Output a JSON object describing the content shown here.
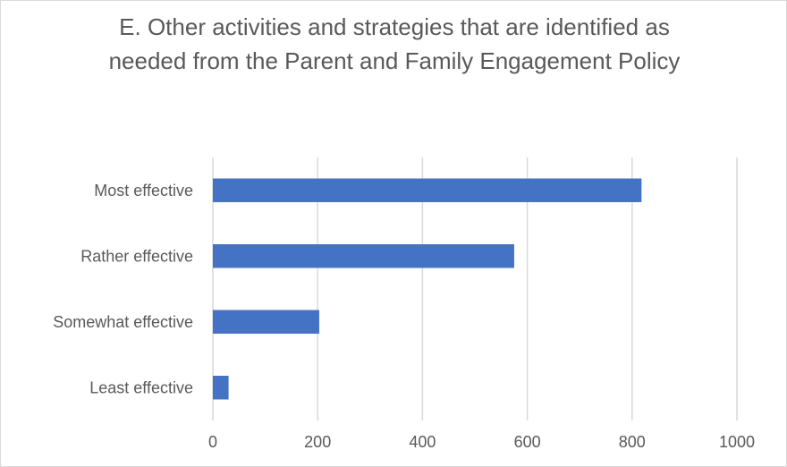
{
  "chart_data": {
    "type": "bar",
    "orientation": "horizontal",
    "title": "E. Other activities and strategies that are identified as needed from the Parent and Family Engagement Policy",
    "categories": [
      "Most effective",
      "Rather effective",
      "Somewhat effective",
      "Least effective"
    ],
    "values": [
      818,
      575,
      203,
      30
    ],
    "xlim": [
      0,
      1000
    ],
    "xticks": [
      0,
      200,
      400,
      600,
      800,
      1000
    ],
    "xlabel": "",
    "ylabel": "",
    "grid": true,
    "legend": "none",
    "bar_color": "#4472c4",
    "grid_color": "#d9d9d9"
  }
}
